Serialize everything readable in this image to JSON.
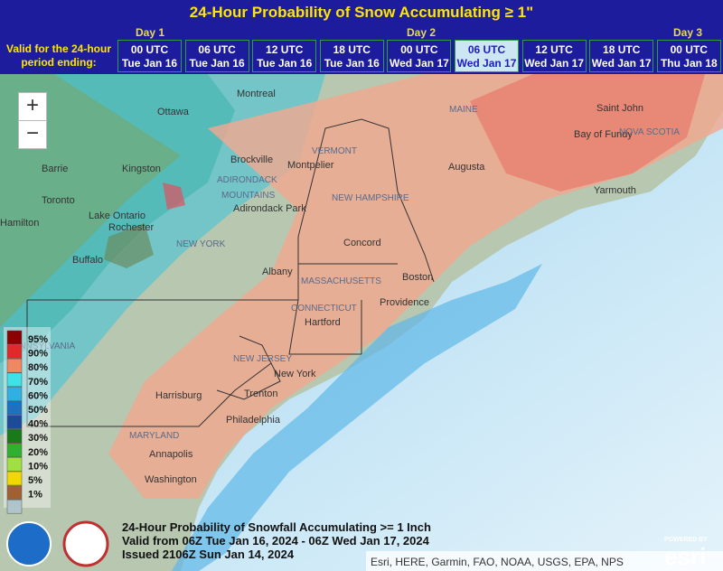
{
  "header": {
    "title": "24-Hour Probability of Snow Accumulating ≥ 1\"",
    "days": [
      "Day 1",
      "Day 2",
      "Day 3"
    ],
    "valid_label": "Valid for the 24-hour period ending:",
    "tabs": [
      {
        "time": "00 UTC",
        "date": "Tue Jan 16"
      },
      {
        "time": "06 UTC",
        "date": "Tue Jan 16"
      },
      {
        "time": "12 UTC",
        "date": "Tue Jan 16"
      },
      {
        "time": "18 UTC",
        "date": "Tue Jan 16"
      },
      {
        "time": "00 UTC",
        "date": "Wed Jan 17"
      },
      {
        "time": "06 UTC",
        "date": "Wed Jan 17"
      },
      {
        "time": "12 UTC",
        "date": "Wed Jan 17"
      },
      {
        "time": "18 UTC",
        "date": "Wed Jan 17"
      },
      {
        "time": "00 UTC",
        "date": "Thu Jan 18"
      }
    ],
    "selected_tab": 5
  },
  "map": {
    "zoom_in": "+",
    "zoom_out": "−",
    "places": [
      "Montreal",
      "Ottawa",
      "Barrie",
      "Toronto",
      "Kingston",
      "Brockville",
      "ADIRONDACK",
      "MOUNTAINS",
      "Adirondack Park",
      "Lake Ontario",
      "Rochester",
      "Buffalo",
      "NEW YORK",
      "Albany",
      "VERMONT",
      "Montpelier",
      "NEW HAMPSHIRE",
      "Concord",
      "MAINE",
      "Augusta",
      "Saint John",
      "Bay of Fundy",
      "NOVA SCOTIA",
      "Yarmouth",
      "MASSACHUSETTS",
      "Boston",
      "Providence",
      "CONNECTICUT",
      "Hartford",
      "NEW JERSEY",
      "New York",
      "Trenton",
      "Philadelphia",
      "Harrisburg",
      "MARYLAND",
      "Annapolis",
      "Washington",
      "Hamilton",
      "PENNSYLVANIA"
    ],
    "legend": [
      {
        "label": "95%",
        "color": "#8b0000"
      },
      {
        "label": "90%",
        "color": "#e02a2a"
      },
      {
        "label": "80%",
        "color": "#f08860"
      },
      {
        "label": "70%",
        "color": "#40e0e8"
      },
      {
        "label": "60%",
        "color": "#30b0e0"
      },
      {
        "label": "50%",
        "color": "#2070c0"
      },
      {
        "label": "40%",
        "color": "#1c4c98"
      },
      {
        "label": "30%",
        "color": "#1a7a1a"
      },
      {
        "label": "20%",
        "color": "#30b030"
      },
      {
        "label": "10%",
        "color": "#a0e040"
      },
      {
        "label": "5%",
        "color": "#f0d800"
      },
      {
        "label": "1%",
        "color": "#a06030"
      }
    ],
    "caption": [
      "24-Hour Probability of Snowfall Accumulating >= 1 Inch",
      "Valid from 06Z Tue Jan 16, 2024 - 06Z Wed Jan 17, 2024",
      "Issued 2106Z Sun Jan 14, 2024"
    ],
    "attribution": "Esri, HERE, Garmin, FAO, NOAA, USGS, EPA, NPS",
    "esri_powered": "POWERED BY",
    "esri": "esri"
  }
}
